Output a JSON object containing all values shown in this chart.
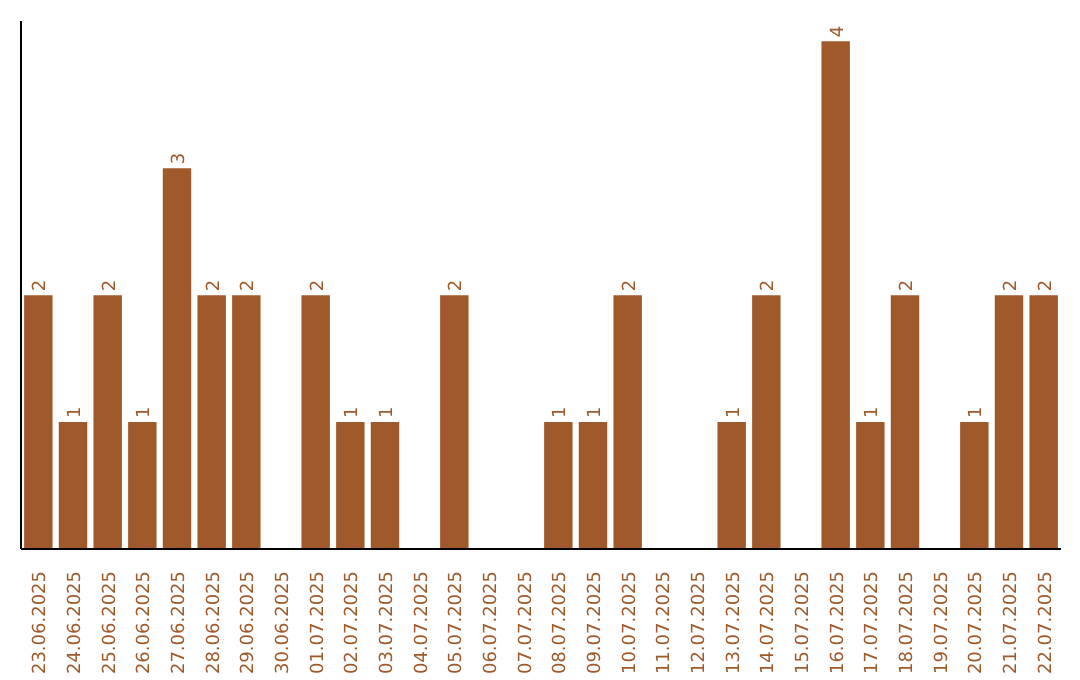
{
  "chart_data": {
    "type": "bar",
    "categories": [
      "23.06.2025",
      "24.06.2025",
      "25.06.2025",
      "26.06.2025",
      "27.06.2025",
      "28.06.2025",
      "29.06.2025",
      "30.06.2025",
      "01.07.2025",
      "02.07.2025",
      "03.07.2025",
      "04.07.2025",
      "05.07.2025",
      "06.07.2025",
      "07.07.2025",
      "08.07.2025",
      "09.07.2025",
      "10.07.2025",
      "11.07.2025",
      "12.07.2025",
      "13.07.2025",
      "14.07.2025",
      "15.07.2025",
      "16.07.2025",
      "17.07.2025",
      "18.07.2025",
      "19.07.2025",
      "20.07.2025",
      "21.07.2025",
      "22.07.2025"
    ],
    "values": [
      2,
      1,
      2,
      1,
      3,
      2,
      2,
      0,
      2,
      1,
      1,
      0,
      2,
      0,
      0,
      1,
      1,
      2,
      0,
      0,
      1,
      2,
      0,
      4,
      1,
      2,
      0,
      1,
      2,
      2
    ],
    "value_labels": [
      "2",
      "1",
      "2",
      "1",
      "3",
      "2",
      "2",
      null,
      "2",
      "1",
      "1",
      null,
      "2",
      null,
      null,
      "1",
      "1",
      "2",
      null,
      null,
      "1",
      "2",
      null,
      "4",
      "1",
      "2",
      null,
      "1",
      "2",
      "2"
    ],
    "color": "#a0592a",
    "ylim": [
      0,
      4.16
    ],
    "tick_labels": "x",
    "grid": false
  }
}
